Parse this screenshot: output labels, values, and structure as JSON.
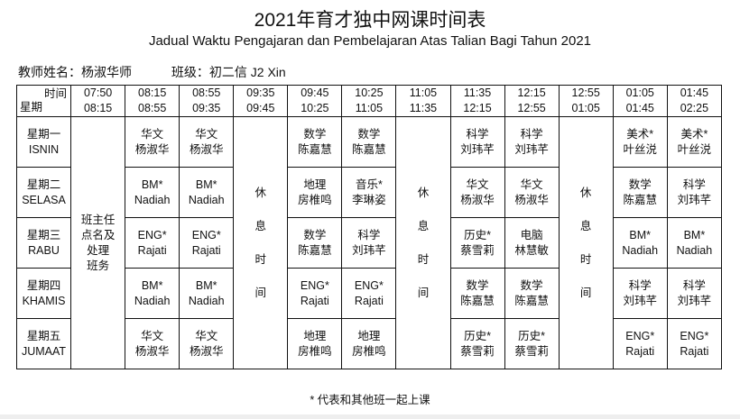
{
  "title": "2021年育才独中网课时间表",
  "subtitle": "Jadual Waktu Pengajaran dan Pembelajaran Atas Talian Bagi Tahun 2021",
  "teacher_label": "教师姓名：杨淑华师",
  "class_label": "班级：初二信 J2 Xin",
  "corner": {
    "time": "时间",
    "day": "星期"
  },
  "periods": [
    {
      "start": "07:50",
      "end": "08:15"
    },
    {
      "start": "08:15",
      "end": "08:55"
    },
    {
      "start": "08:55",
      "end": "09:35"
    },
    {
      "start": "09:35",
      "end": "09:45"
    },
    {
      "start": "09:45",
      "end": "10:25"
    },
    {
      "start": "10:25",
      "end": "11:05"
    },
    {
      "start": "11:05",
      "end": "11:35"
    },
    {
      "start": "11:35",
      "end": "12:15"
    },
    {
      "start": "12:15",
      "end": "12:55"
    },
    {
      "start": "12:55",
      "end": "01:05"
    },
    {
      "start": "01:05",
      "end": "01:45"
    },
    {
      "start": "01:45",
      "end": "02:25"
    }
  ],
  "homeroom": [
    "班主任",
    "点名及",
    "处理",
    "班务"
  ],
  "break_chars": [
    "休",
    "息",
    "时",
    "间"
  ],
  "days": [
    {
      "zh": "星期一",
      "ms": "ISNIN",
      "cells": [
        [
          "华文",
          "杨淑华"
        ],
        [
          "华文",
          "杨淑华"
        ],
        [
          "数学",
          "陈嘉慧"
        ],
        [
          "数学",
          "陈嘉慧"
        ],
        [
          "科学",
          "刘玮芊"
        ],
        [
          "科学",
          "刘玮芊"
        ],
        [
          "美术*",
          "叶丝涚"
        ],
        [
          "美术*",
          "叶丝涚"
        ]
      ]
    },
    {
      "zh": "星期二",
      "ms": "SELASA",
      "cells": [
        [
          "BM*",
          "Nadiah"
        ],
        [
          "BM*",
          "Nadiah"
        ],
        [
          "地理",
          "房椎鸣"
        ],
        [
          "音乐*",
          "李琳姿"
        ],
        [
          "华文",
          "杨淑华"
        ],
        [
          "华文",
          "杨淑华"
        ],
        [
          "数学",
          "陈嘉慧"
        ],
        [
          "科学",
          "刘玮芊"
        ]
      ]
    },
    {
      "zh": "星期三",
      "ms": "RABU",
      "cells": [
        [
          "ENG*",
          "Rajati"
        ],
        [
          "ENG*",
          "Rajati"
        ],
        [
          "数学",
          "陈嘉慧"
        ],
        [
          "科学",
          "刘玮芊"
        ],
        [
          "历史*",
          "蔡雪莉"
        ],
        [
          "电脑",
          "林慧敏"
        ],
        [
          "BM*",
          "Nadiah"
        ],
        [
          "BM*",
          "Nadiah"
        ]
      ]
    },
    {
      "zh": "星期四",
      "ms": "KHAMIS",
      "cells": [
        [
          "BM*",
          "Nadiah"
        ],
        [
          "BM*",
          "Nadiah"
        ],
        [
          "ENG*",
          "Rajati"
        ],
        [
          "ENG*",
          "Rajati"
        ],
        [
          "数学",
          "陈嘉慧"
        ],
        [
          "数学",
          "陈嘉慧"
        ],
        [
          "科学",
          "刘玮芊"
        ],
        [
          "科学",
          "刘玮芊"
        ]
      ]
    },
    {
      "zh": "星期五",
      "ms": "JUMAAT",
      "cells": [
        [
          "华文",
          "杨淑华"
        ],
        [
          "华文",
          "杨淑华"
        ],
        [
          "地理",
          "房椎鸣"
        ],
        [
          "地理",
          "房椎鸣"
        ],
        [
          "历史*",
          "蔡雪莉"
        ],
        [
          "历史*",
          "蔡雪莉"
        ],
        [
          "ENG*",
          "Rajati"
        ],
        [
          "ENG*",
          "Rajati"
        ]
      ]
    }
  ],
  "footnote": "* 代表和其他班一起上课"
}
